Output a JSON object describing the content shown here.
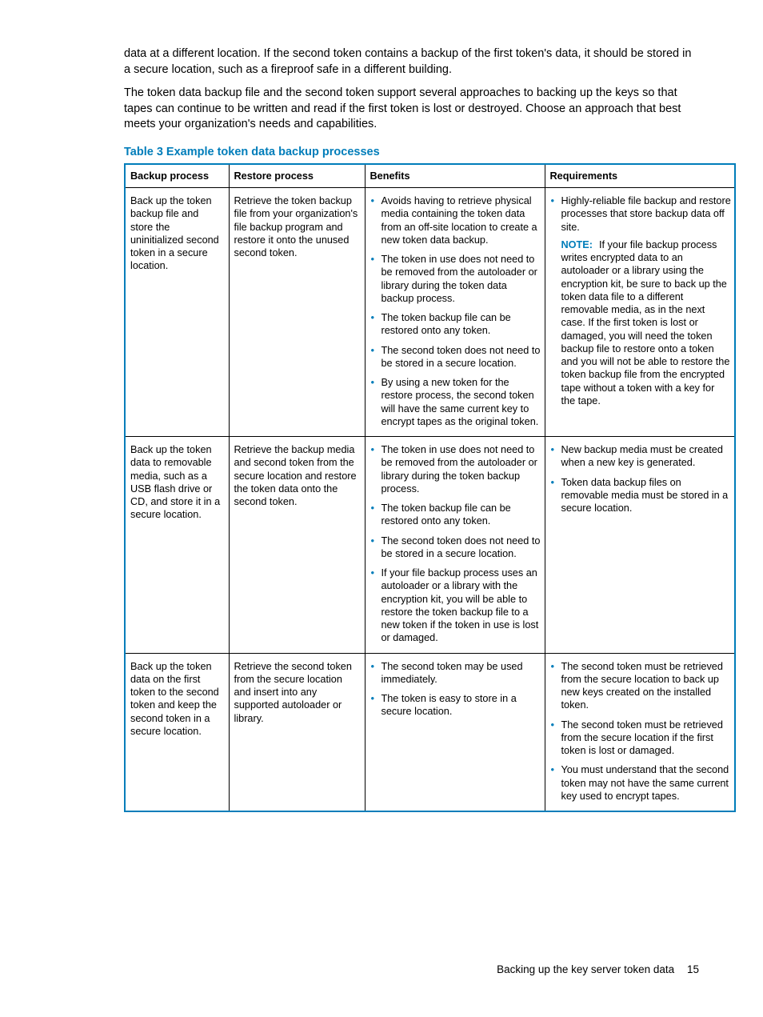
{
  "colors": {
    "accent": "#007dba",
    "text": "#000000",
    "border": "#000000",
    "background": "#ffffff"
  },
  "paragraphs": {
    "p1": "data at a different location. If the second token contains a backup of the first token's data, it should be stored in a secure location, such as a fireproof safe in a different building.",
    "p2": "The token data backup file and the second token support several approaches to backing up the keys so that tapes can continue to be written and read if the first token is lost or destroyed. Choose an approach that best meets your organization's needs and capabilities."
  },
  "table": {
    "caption": "Table 3 Example token data backup processes",
    "headers": {
      "h1": "Backup process",
      "h2": "Restore process",
      "h3": "Benefits",
      "h4": "Requirements"
    },
    "rows": [
      {
        "backup": "Back up the token backup file and store the uninitialized second token in a secure location.",
        "restore": "Retrieve the token backup file from your organization's file backup program and restore it onto the unused second token.",
        "benefits": [
          "Avoids having to retrieve physical media containing the token data from an off-site location to create a new token data backup.",
          "The token in use does not need to be removed from the autoloader or library during the token data backup process.",
          "The token backup file can be restored onto any token.",
          "The second token does not need to be stored in a secure location.",
          "By using a new token for the restore process, the second token will have the same current key to encrypt tapes as the original token."
        ],
        "requirements": [
          "Highly-reliable file backup and restore processes that store backup data off site."
        ],
        "req_note_label": "NOTE:",
        "req_note_lead": "If your file backup",
        "req_note_rest": "process writes encrypted data to an autoloader or a library using the encryption kit, be sure to back up the token data file to a different removable media, as in the next case. If the first token is lost or damaged, you will need the token backup file to restore onto a token and you will not be able to restore the token backup file from the encrypted tape without a token with a key for the tape."
      },
      {
        "backup": "Back up the token data to removable media, such as a USB flash drive or CD, and store it in a secure location.",
        "restore": "Retrieve the backup media and second token from the secure location and restore the token data onto the second token.",
        "benefits": [
          "The token in use does not need to be removed from the autoloader or library during the token backup process.",
          "The token backup file can be restored onto any token.",
          "The second token does not need to be stored in a secure location.",
          "If your file backup process uses an autoloader or a library with the encryption kit, you will be able to restore the token backup file to a new token if the token in use is lost or damaged."
        ],
        "requirements": [
          "New backup media must be created when a new key is generated.",
          "Token data backup files on removable media must be stored in a secure location."
        ]
      },
      {
        "backup": "Back up the token data on the first token to the second token and keep the second token in a secure location.",
        "restore": "Retrieve the second token from the secure location and insert into any supported autoloader or library.",
        "benefits": [
          "The second token may be used immediately.",
          "The token is easy to store in a secure location."
        ],
        "requirements": [
          "The second token must be retrieved from the secure location to back up new keys created on the installed token.",
          "The second token must be retrieved from the secure location if the first token is lost or damaged.",
          "You must understand that the second token may not have the same current key used to encrypt tapes."
        ]
      }
    ]
  },
  "footer": {
    "text": "Backing up the key server token data",
    "page": "15"
  }
}
